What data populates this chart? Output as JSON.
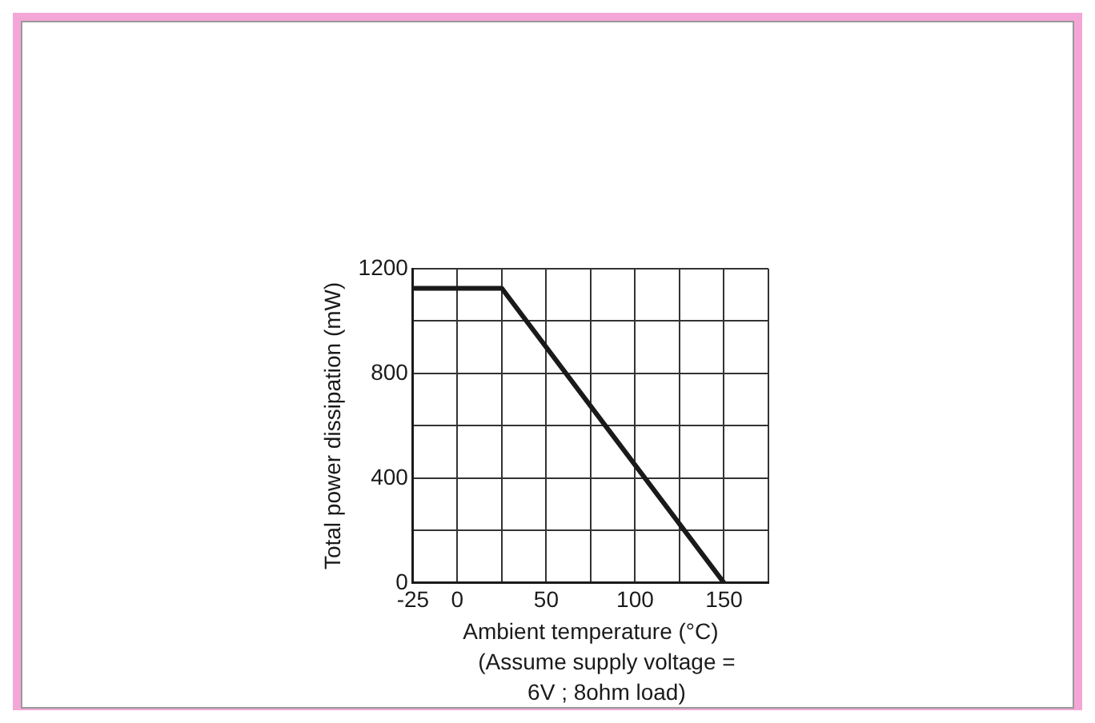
{
  "chart_data": {
    "type": "line",
    "xlabel": "Ambient temperature (°C)",
    "ylabel": "Total power dissipation (mW)",
    "x": [
      -25,
      25,
      150
    ],
    "series": [
      {
        "color": "#1a1a1a",
        "values": [
          1125,
          1125,
          0
        ]
      }
    ],
    "xlim": [
      -25,
      175
    ],
    "ylim": [
      0,
      1200
    ],
    "xticks": [
      -25,
      0,
      {
        "value": 25,
        "label": null
      },
      50,
      {
        "value": 75,
        "label": null
      },
      100,
      {
        "value": 125,
        "label": null
      },
      150,
      {
        "value": 175,
        "label": null
      }
    ],
    "yticks": [
      0,
      {
        "value": 200,
        "label": null
      },
      400,
      {
        "value": 600,
        "label": null
      },
      800,
      {
        "value": 1000,
        "label": null
      },
      1200
    ],
    "grid": true,
    "legend": false,
    "marker": "none",
    "line_style": "solid",
    "annotations": [
      "(Assume supply voltage =\n6V ; 8ohm load)"
    ]
  }
}
